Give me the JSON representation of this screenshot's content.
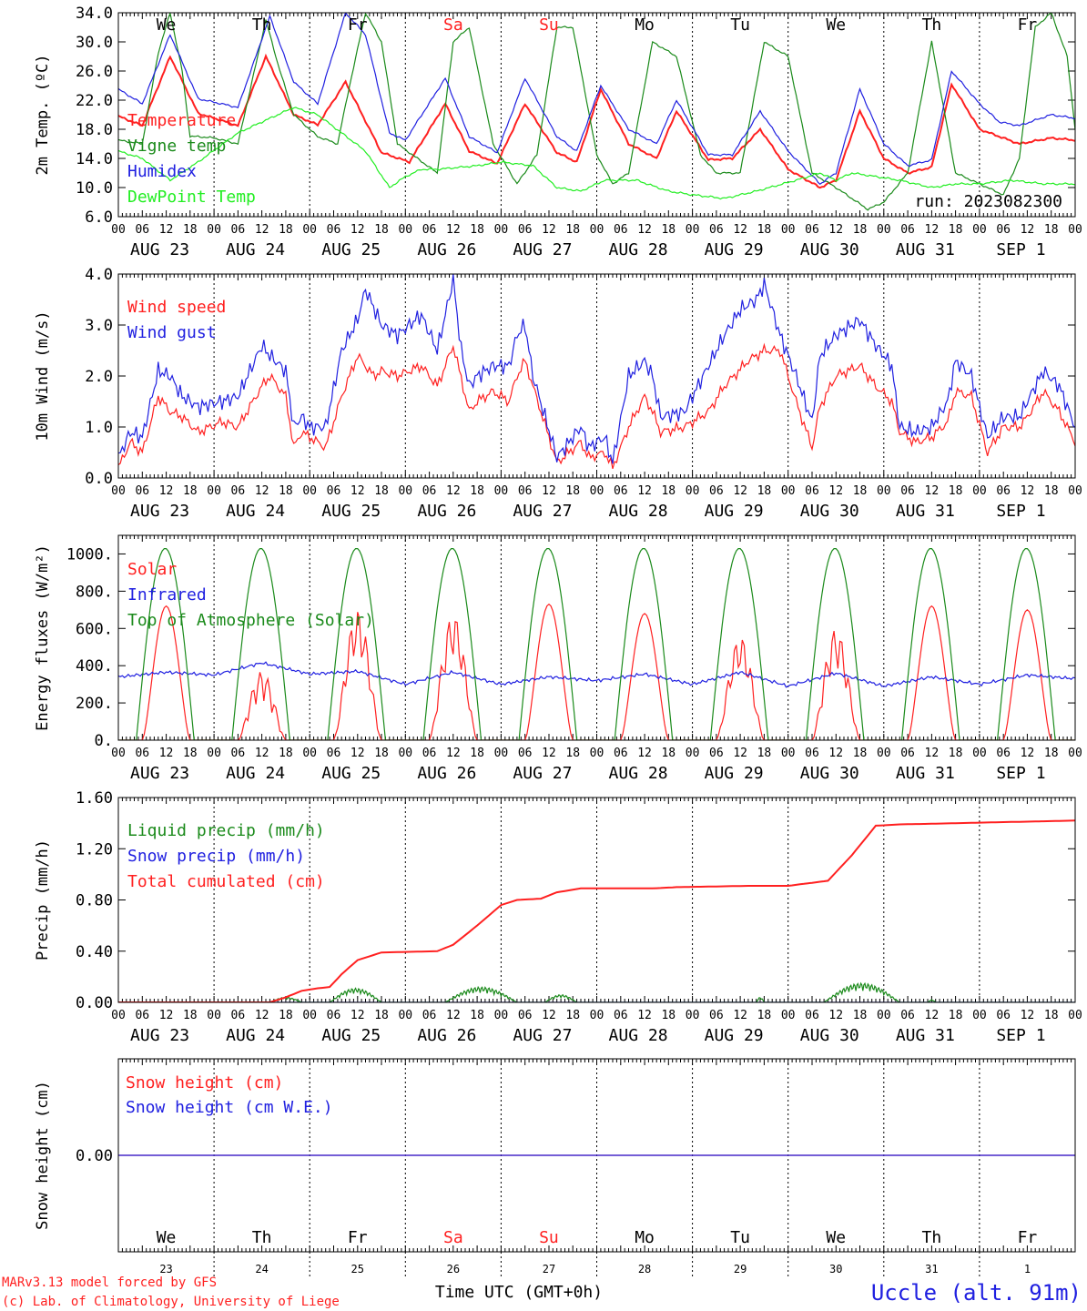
{
  "footer": {
    "model_line1": "MARv3.13 model forced by GFS",
    "model_line2": "(c) Lab. of Climatology, University of Liege",
    "xlabel": "Time UTC (GMT+0h)",
    "station": "Uccle (alt. 91m)",
    "run": "run: 2023082300"
  },
  "days": {
    "labels": [
      "AUG 23",
      "AUG 24",
      "AUG 25",
      "AUG 26",
      "AUG 27",
      "AUG 28",
      "AUG 29",
      "AUG 30",
      "AUG 31",
      "SEP  1"
    ],
    "weekdays": [
      "We",
      "Th",
      "Fr",
      "Sa",
      "Su",
      "Mo",
      "Tu",
      "We",
      "Th",
      "Fr"
    ],
    "weekday_colors": [
      "#000000",
      "#000000",
      "#000000",
      "#ff2020",
      "#ff2020",
      "#000000",
      "#000000",
      "#000000",
      "#000000",
      "#000000"
    ],
    "day_numbers": [
      "23",
      "24",
      "25",
      "26",
      "27",
      "28",
      "29",
      "30",
      "31",
      "1"
    ],
    "hour_ticks": [
      "00",
      "06",
      "12",
      "18"
    ],
    "final_tick": "00"
  },
  "chart_data": [
    {
      "id": "temp",
      "type": "line",
      "ylabel": "2m Temp. (ºC)",
      "ylim": [
        6.0,
        34.0
      ],
      "yticks": [
        "6.0",
        "10.0",
        "14.0",
        "18.0",
        "22.0",
        "26.0",
        "30.0",
        "34.0"
      ],
      "x_unit": "hours since 2023-08-23 00 UTC",
      "series": [
        {
          "name": "Temperature",
          "color": "#ff2020",
          "x": [
            0,
            6,
            13,
            20,
            30,
            37,
            44,
            50,
            57,
            66,
            73,
            82,
            88,
            95,
            102,
            110,
            115,
            121,
            128,
            135,
            140,
            148,
            154,
            161,
            168,
            176,
            180,
            186,
            192,
            198,
            204,
            209,
            216,
            221,
            226,
            234,
            240
          ],
          "values": [
            19.8,
            18.5,
            28.0,
            20.2,
            18.5,
            28.0,
            20.0,
            18.6,
            24.5,
            14.8,
            13.5,
            21.5,
            15.0,
            13.3,
            21.5,
            14.8,
            13.5,
            23.5,
            16.0,
            14.0,
            20.5,
            13.8,
            14.0,
            18.0,
            12.5,
            10.0,
            11.0,
            20.5,
            14.0,
            12.0,
            12.8,
            24.2,
            18.0,
            17.0,
            16.0,
            16.8,
            16.5
          ]
        },
        {
          "name": "Vigne temp",
          "color": "#1a8a1a",
          "x": [
            0,
            6,
            10,
            13,
            16,
            18,
            20,
            24,
            30,
            37,
            40,
            44,
            50,
            55,
            58,
            62,
            66,
            70,
            75,
            80,
            84,
            88,
            94,
            100,
            105,
            110,
            114,
            120,
            124,
            128,
            134,
            140,
            146,
            150,
            156,
            162,
            168,
            174,
            180,
            188,
            192,
            198,
            204,
            210,
            216,
            222,
            226,
            230,
            234,
            238,
            240
          ],
          "values": [
            16.5,
            16.0,
            28.5,
            34.0,
            26.0,
            17.0,
            17.0,
            16.8,
            16.0,
            33.0,
            27.0,
            20.0,
            17.0,
            16.0,
            24.0,
            34.0,
            30.0,
            16.0,
            14.0,
            12.0,
            30.0,
            32.0,
            16.0,
            10.5,
            14.5,
            32.0,
            32.0,
            14.5,
            10.5,
            12.0,
            30.0,
            28.0,
            14.5,
            12.0,
            12.0,
            30.0,
            28.0,
            12.0,
            10.0,
            7.0,
            8.0,
            12.0,
            30.0,
            12.0,
            10.5,
            9.0,
            14.0,
            32.0,
            34.0,
            28.0,
            18.0
          ]
        },
        {
          "name": "Humidex",
          "color": "#2020e0",
          "x": [
            0,
            6,
            13,
            20,
            30,
            38,
            44,
            50,
            57,
            62,
            68,
            72,
            82,
            88,
            95,
            102,
            110,
            115,
            121,
            128,
            135,
            140,
            148,
            154,
            161,
            168,
            176,
            180,
            186,
            192,
            198,
            204,
            209,
            216,
            221,
            226,
            234,
            240
          ],
          "values": [
            23.5,
            21.5,
            31.0,
            22.2,
            21.0,
            33.5,
            24.5,
            21.5,
            34.0,
            31.0,
            17.5,
            16.5,
            25.0,
            17.0,
            14.8,
            25.0,
            17.0,
            15.0,
            24.0,
            18.0,
            16.0,
            22.0,
            14.5,
            14.5,
            20.5,
            15.0,
            10.5,
            12.0,
            23.5,
            16.0,
            13.0,
            13.8,
            26.0,
            21.5,
            19.0,
            18.5,
            20.0,
            19.5
          ]
        },
        {
          "name": "DewPoint Temp",
          "color": "#22ee22",
          "x": [
            0,
            6,
            13,
            20,
            30,
            36,
            44,
            50,
            56,
            62,
            68,
            72,
            76,
            80,
            90,
            96,
            104,
            110,
            116,
            122,
            130,
            138,
            144,
            152,
            160,
            170,
            176,
            180,
            184,
            190,
            196,
            204,
            210,
            216,
            224,
            232,
            240
          ],
          "values": [
            15.0,
            14.0,
            11.0,
            13.5,
            17.5,
            19.0,
            21.0,
            20.0,
            17.5,
            15.0,
            10.0,
            11.5,
            12.5,
            12.5,
            13.0,
            13.5,
            13.0,
            10.0,
            9.5,
            11.0,
            11.0,
            9.5,
            9.0,
            8.5,
            9.5,
            11.0,
            12.0,
            11.0,
            12.0,
            11.5,
            11.0,
            10.0,
            10.5,
            10.5,
            11.0,
            10.5,
            10.5
          ]
        }
      ]
    },
    {
      "id": "wind",
      "type": "line",
      "ylabel": "10m Wind (m/s)",
      "ylim": [
        0.0,
        4.0
      ],
      "yticks": [
        "0.0",
        "1.0",
        "2.0",
        "3.0",
        "4.0"
      ],
      "series": [
        {
          "name": "Wind speed",
          "color": "#ff2020",
          "x": [
            0,
            3,
            6,
            10,
            13,
            16,
            20,
            26,
            30,
            36,
            38,
            42,
            44,
            46,
            48,
            52,
            56,
            60,
            64,
            66,
            70,
            76,
            80,
            84,
            88,
            90,
            94,
            98,
            100,
            102,
            104,
            110,
            116,
            118,
            122,
            124,
            128,
            132,
            134,
            136,
            142,
            148,
            152,
            158,
            162,
            166,
            170,
            174,
            176,
            180,
            186,
            190,
            194,
            196,
            200,
            204,
            208,
            210,
            214,
            218,
            222,
            226,
            228,
            232,
            236,
            240
          ],
          "values": [
            0.2,
            0.7,
            0.5,
            1.6,
            1.3,
            1.2,
            0.9,
            1.1,
            1.0,
            1.8,
            2.0,
            1.6,
            0.6,
            0.9,
            0.8,
            0.6,
            1.6,
            2.4,
            2.0,
            2.1,
            2.0,
            2.2,
            1.8,
            2.6,
            1.3,
            1.5,
            1.7,
            1.5,
            2.0,
            2.3,
            1.8,
            0.3,
            0.7,
            0.4,
            0.5,
            0.2,
            1.0,
            1.6,
            1.3,
            0.9,
            1.0,
            1.3,
            1.8,
            2.3,
            2.5,
            2.5,
            1.5,
            0.6,
            1.4,
            2.0,
            2.2,
            1.8,
            1.5,
            0.9,
            0.7,
            0.8,
            1.1,
            1.7,
            1.6,
            0.5,
            1.0,
            1.0,
            1.2,
            1.7,
            1.3,
            0.7
          ]
        },
        {
          "name": "Wind gust",
          "color": "#2020e0",
          "x": [
            0,
            3,
            6,
            10,
            13,
            16,
            20,
            26,
            30,
            36,
            38,
            42,
            44,
            46,
            48,
            52,
            56,
            60,
            62,
            66,
            70,
            76,
            80,
            84,
            86,
            88,
            90,
            94,
            98,
            100,
            102,
            104,
            110,
            116,
            118,
            122,
            124,
            128,
            132,
            134,
            136,
            142,
            148,
            152,
            156,
            160,
            162,
            166,
            170,
            174,
            176,
            180,
            186,
            190,
            194,
            196,
            200,
            204,
            208,
            210,
            214,
            218,
            222,
            226,
            228,
            232,
            236,
            240
          ],
          "values": [
            0.4,
            0.9,
            0.8,
            2.1,
            2.0,
            1.6,
            1.4,
            1.5,
            1.6,
            2.6,
            2.4,
            2.1,
            1.0,
            1.2,
            1.0,
            1.0,
            2.5,
            3.1,
            3.7,
            3.0,
            2.8,
            3.2,
            2.5,
            3.9,
            2.5,
            1.8,
            2.0,
            2.2,
            2.2,
            2.8,
            3.0,
            2.0,
            0.4,
            1.0,
            0.6,
            0.8,
            0.3,
            2.0,
            2.3,
            2.0,
            1.2,
            1.3,
            2.2,
            2.8,
            3.3,
            3.5,
            3.8,
            2.8,
            2.0,
            1.1,
            2.4,
            2.8,
            3.1,
            2.6,
            2.2,
            1.0,
            0.9,
            1.0,
            1.5,
            2.3,
            2.0,
            0.8,
            1.2,
            1.2,
            1.5,
            2.1,
            1.8,
            1.0
          ]
        }
      ]
    },
    {
      "id": "energy",
      "type": "line",
      "ylabel": "Energy fluxes (W/m²)",
      "ylim": [
        0,
        1100
      ],
      "yticks": [
        "0.",
        "200.",
        "400.",
        "600.",
        "800.",
        "1000."
      ],
      "series": [
        {
          "name": "Solar",
          "color": "#ff2020",
          "daily_peaks": [
            720,
            370,
            700,
            680,
            730,
            680,
            560,
            600,
            720,
            700
          ],
          "cloudy_days": [
            1,
            2,
            3,
            6,
            7
          ]
        },
        {
          "name": "Infrared",
          "color": "#2020e0",
          "x": [
            0,
            12,
            24,
            36,
            48,
            60,
            72,
            84,
            96,
            108,
            120,
            132,
            144,
            156,
            168,
            180,
            192,
            204,
            216,
            228,
            240
          ],
          "values": [
            340,
            365,
            350,
            415,
            355,
            370,
            300,
            365,
            300,
            340,
            320,
            355,
            300,
            365,
            290,
            360,
            290,
            340,
            300,
            350,
            330
          ]
        },
        {
          "name": "Top of Atmosphere (Solar)",
          "color": "#1a8a1a",
          "daily_peak": 1030,
          "sunrise_h": 4.5,
          "sunset_h": 19.0
        }
      ]
    },
    {
      "id": "precip",
      "type": "line",
      "ylabel": "Precip (mm/h)",
      "ylim": [
        0.0,
        1.6
      ],
      "yticks": [
        "0.00",
        "0.40",
        "0.80",
        "1.20",
        "1.60"
      ],
      "series": [
        {
          "name": "Liquid precip (mm/h)",
          "color": "#1a8a1a",
          "bursts": [
            [
              38,
              46,
              0.04
            ],
            [
              53,
              66,
              0.11
            ],
            [
              82,
              100,
              0.12
            ],
            [
              107,
              115,
              0.06
            ],
            [
              160,
              162,
              0.04
            ],
            [
              177,
              196,
              0.15
            ],
            [
              203,
              205,
              0.02
            ],
            [
              240,
              241,
              0.05
            ]
          ]
        },
        {
          "name": "Snow precip (mm/h)",
          "color": "#2020e0",
          "x": [
            0,
            240
          ],
          "values": [
            0,
            0
          ]
        },
        {
          "name": "Total cumulated (cm)",
          "color": "#ff2020",
          "x": [
            0,
            38,
            42,
            46,
            50,
            53,
            56,
            60,
            66,
            80,
            84,
            90,
            96,
            100,
            106,
            110,
            116,
            134,
            140,
            158,
            168,
            178,
            184,
            190,
            196,
            240
          ],
          "values": [
            0,
            0,
            0.04,
            0.09,
            0.11,
            0.12,
            0.22,
            0.33,
            0.39,
            0.4,
            0.45,
            0.6,
            0.76,
            0.8,
            0.81,
            0.86,
            0.89,
            0.89,
            0.9,
            0.91,
            0.91,
            0.95,
            1.15,
            1.38,
            1.39,
            1.42
          ]
        }
      ]
    },
    {
      "id": "snow",
      "type": "line",
      "ylabel": "Snow height (cm)",
      "ylim": [
        -1.0,
        1.0
      ],
      "yticks": [
        "0.00"
      ],
      "series": [
        {
          "name": "Snow height (cm)",
          "color": "#ff2020",
          "x": [
            0,
            240
          ],
          "values": [
            0,
            0
          ]
        },
        {
          "name": "Snow height (cm W.E.)",
          "color": "#2020e0",
          "x": [
            0,
            240
          ],
          "values": [
            0,
            0
          ]
        }
      ]
    }
  ]
}
